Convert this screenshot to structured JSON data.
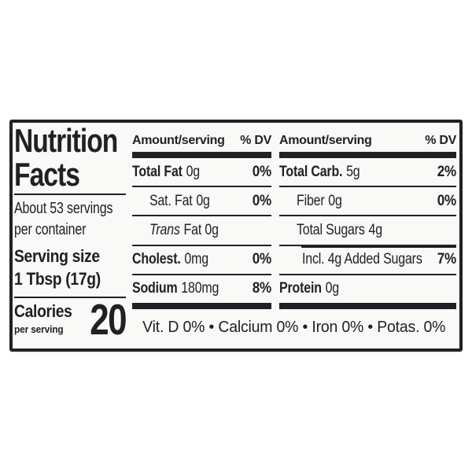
{
  "colors": {
    "ink": "#212024",
    "label_background": "#f9f9f7",
    "page_background": "#ffffff"
  },
  "nutrition": {
    "title_line1": "Nutrition",
    "title_line2": "Facts",
    "servings_line1": "About 53 servings",
    "servings_line2": "per container",
    "serving_size_label": "Serving size",
    "serving_size_value": "1 Tbsp (17g)",
    "calories_label": "Calories",
    "calories_sub": "per serving",
    "calories_value": "20",
    "column_header_amount": "Amount/serving",
    "column_header_dv": "% DV",
    "middle": {
      "rows": [
        {
          "name": "Total Fat",
          "amount": "0g",
          "dv": "0%"
        },
        {
          "name": "Sat. Fat",
          "amount": "0g",
          "dv": "0%"
        },
        {
          "name": "Trans",
          "amount": "Fat 0g",
          "dv": ""
        },
        {
          "name": "Cholest.",
          "amount": "0mg",
          "dv": "0%"
        },
        {
          "name": "Sodium",
          "amount": "180mg",
          "dv": "8%"
        }
      ]
    },
    "right": {
      "rows": [
        {
          "name": "Total Carb.",
          "amount": "5g",
          "dv": "2%"
        },
        {
          "name": "Fiber",
          "amount": "0g",
          "dv": "0%"
        },
        {
          "name": "Total Sugars",
          "amount": "4g",
          "dv": ""
        },
        {
          "name": "Incl. 4g Added Sugars",
          "amount": "",
          "dv": "7%"
        },
        {
          "name": "Protein",
          "amount": "0g",
          "dv": ""
        }
      ]
    },
    "micronutrients": "Vit. D 0% • Calcium 0% • Iron 0% • Potas. 0%"
  }
}
